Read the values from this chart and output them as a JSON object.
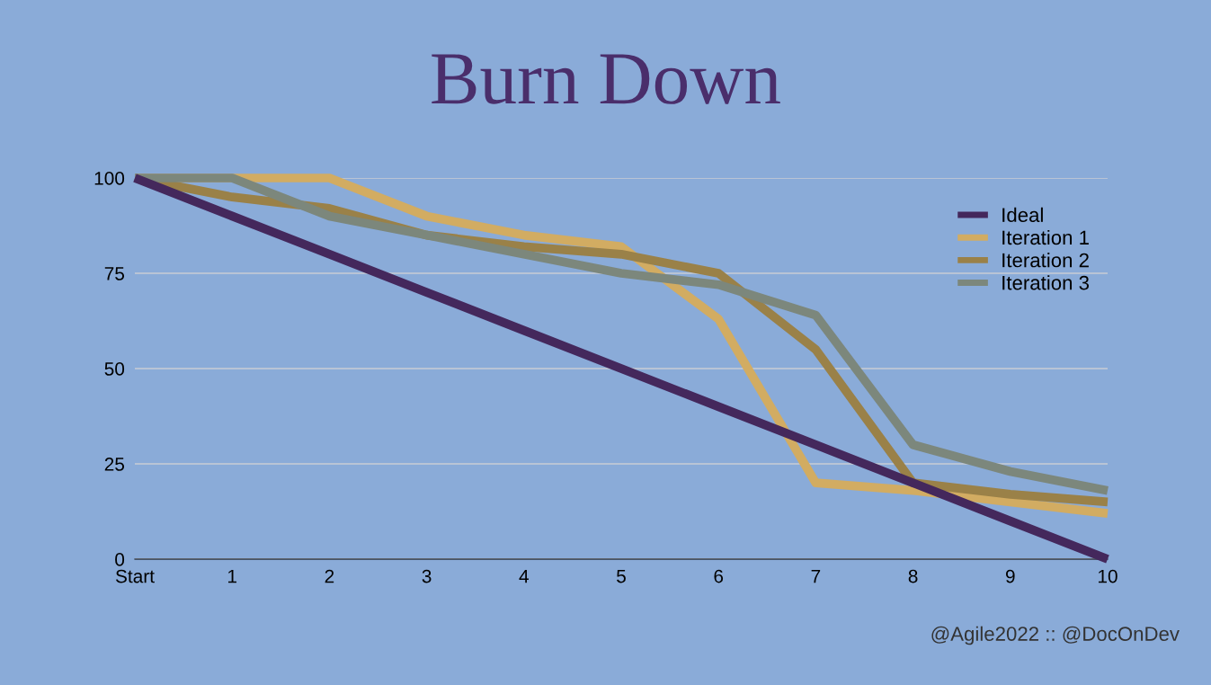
{
  "chart_data": {
    "type": "line",
    "title": "Burn Down",
    "categories": [
      "Start",
      "1",
      "2",
      "3",
      "4",
      "5",
      "6",
      "7",
      "8",
      "9",
      "10"
    ],
    "series": [
      {
        "name": "Ideal",
        "color": "#44285c",
        "values": [
          100,
          90,
          80,
          70,
          60,
          50,
          40,
          30,
          20,
          10,
          0
        ]
      },
      {
        "name": "Iteration 1",
        "color": "#d2ac62",
        "values": [
          100,
          100,
          100,
          90,
          85,
          82,
          63,
          20,
          18,
          15,
          12
        ]
      },
      {
        "name": "Iteration 2",
        "color": "#9a8148",
        "values": [
          100,
          95,
          92,
          85,
          82,
          80,
          75,
          55,
          20,
          17,
          15
        ]
      },
      {
        "name": "Iteration 3",
        "color": "#7c877c",
        "values": [
          100,
          100,
          90,
          85,
          80,
          75,
          72,
          64,
          30,
          23,
          18
        ]
      }
    ],
    "ylim": [
      0,
      100
    ],
    "yticks": [
      0,
      25,
      50,
      75,
      100
    ],
    "grid": "y",
    "legend": "top right",
    "marker": "none",
    "line_style": "solid",
    "annotations": [
      "@Agile2022 :: @DocOnDev"
    ]
  }
}
